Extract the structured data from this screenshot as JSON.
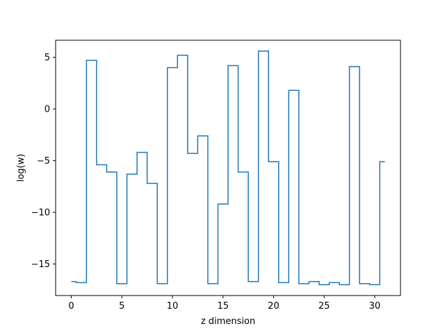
{
  "chart_data": {
    "type": "line",
    "drawstyle": "steps-mid",
    "title": "",
    "xlabel": "z dimension",
    "ylabel": "log(w)",
    "xlim": [
      -1.55,
      32.55
    ],
    "ylim": [
      -18.05,
      6.65
    ],
    "xticks": [
      0,
      5,
      10,
      15,
      20,
      25,
      30
    ],
    "xtick_labels": [
      "0",
      "5",
      "10",
      "15",
      "20",
      "25",
      "30"
    ],
    "yticks": [
      -15,
      -10,
      -5,
      0,
      5
    ],
    "ytick_labels": [
      "−15",
      "−10",
      "−5",
      "0",
      "5"
    ],
    "grid": false,
    "color": "#1f77b4",
    "series": [
      {
        "x": [
          0,
          1,
          2,
          3,
          4,
          5,
          6,
          7,
          8,
          9,
          10,
          11,
          12,
          13,
          14,
          15,
          16,
          17,
          18,
          19,
          20,
          21,
          22,
          23,
          24,
          25,
          26,
          27,
          28,
          29,
          30,
          31
        ],
        "y": [
          -16.7,
          -16.8,
          4.7,
          -5.4,
          -6.1,
          -16.9,
          -6.3,
          -4.2,
          -7.2,
          -16.9,
          4.0,
          5.2,
          -4.3,
          -2.6,
          -16.9,
          -9.2,
          4.2,
          -6.1,
          -16.7,
          5.6,
          -5.1,
          -16.8,
          1.8,
          -16.9,
          -16.7,
          -17.0,
          -16.8,
          -17.0,
          4.1,
          -16.9,
          -17.0,
          -5.1
        ]
      }
    ]
  }
}
